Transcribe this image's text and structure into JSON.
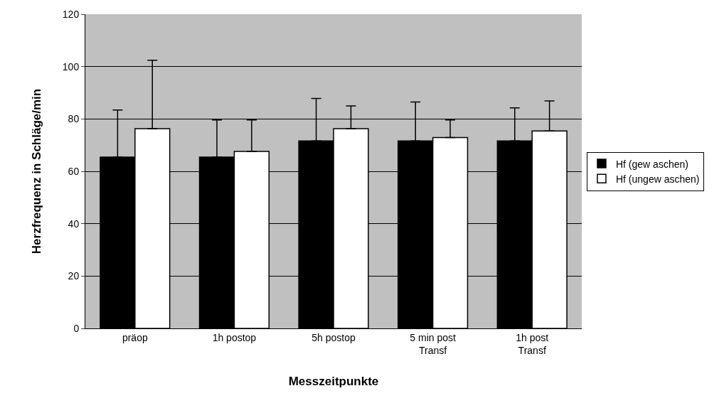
{
  "chart_data": {
    "type": "bar",
    "xlabel": "Messzeitpunkte",
    "ylabel": "Herzfrequenz in Schläge/min",
    "categories": [
      "präop",
      "1h postop",
      "5h postop",
      "5 min post\nTransf",
      "1h post\nTransf"
    ],
    "series": [
      {
        "name": "Hf (gew aschen)",
        "color": "#000000",
        "values": [
          65.4,
          65.4,
          71.6,
          71.6,
          71.6
        ],
        "errors": [
          [
            65.4,
            83.4
          ],
          [
            65.4,
            79.6
          ],
          [
            71.6,
            87.8
          ],
          [
            71.6,
            86.5
          ],
          [
            71.6,
            84.2
          ]
        ]
      },
      {
        "name": "Hf (ungew aschen)",
        "color": "#ffffff",
        "values": [
          76.3,
          67.6,
          76.3,
          72.9,
          75.4
        ],
        "errors": [
          [
            76.3,
            102.4
          ],
          [
            67.6,
            79.6
          ],
          [
            76.3,
            85.0
          ],
          [
            72.9,
            79.6
          ],
          [
            75.4,
            86.9
          ]
        ]
      }
    ],
    "ylim": [
      0,
      120
    ],
    "yticks": [
      0,
      20,
      40,
      60,
      80,
      100,
      120
    ],
    "grid": "y",
    "legend": "right"
  }
}
